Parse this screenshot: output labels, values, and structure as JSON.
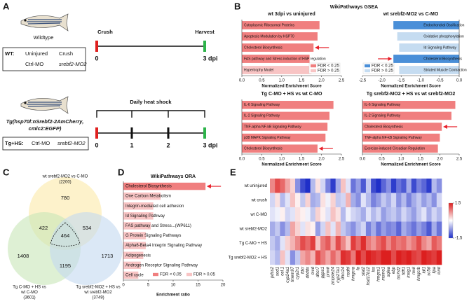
{
  "panel_labels": [
    "A",
    "B",
    "C",
    "D",
    "E"
  ],
  "panel_a": {
    "fish1_label": "Wildtype",
    "timeline1": {
      "start": "Crush",
      "end": "Harvest",
      "ticks": [
        "0",
        "3 dpi"
      ]
    },
    "box1": {
      "head": "WT:",
      "items": [
        "Uninjured",
        "Crush",
        "Ctrl-MO",
        "srebf2-MO2"
      ]
    },
    "fish2_label": [
      "Tg(hsp70l:nSrebf2-2AmCherry,",
      "cmlc2:EGFP)"
    ],
    "timeline2": {
      "title": "Daily heat shock",
      "ticks": [
        "0",
        "1",
        "2",
        "3 dpi"
      ]
    },
    "box2": {
      "head": "Tg+HS:",
      "items": [
        "Ctrl-MO",
        "srebf2-MO2"
      ]
    }
  },
  "gsea_title": "WikiPathways GSEA",
  "chart_data": [
    {
      "type": "barh",
      "title": "wt 3dpi vs uninjured",
      "categories": [
        "Cytoplasmic Ribosomal Proteins",
        "Apoptosis Modulation by HSP70",
        "Cholesterol Biosynthesis",
        "FAS pathway and Stress induction of HSP regulation",
        "Hypertrophy Model"
      ],
      "values": [
        1.95,
        1.9,
        1.8,
        1.7,
        1.75
      ],
      "colors": [
        "#f07f7f",
        "#f07f7f",
        "#f07f7f",
        "#f07f7f",
        "#f8c4c4"
      ],
      "arrow": 2,
      "legend": [
        {
          "name": "FDR < 0.25",
          "color": "#f07f7f"
        },
        {
          "name": "FDR > 0.25",
          "color": "#f8c4c4"
        }
      ],
      "legend_position": "lower right",
      "xlim": [
        0,
        2.5
      ],
      "xticks": [
        {
          "value": 0,
          "label": "0.0"
        },
        0.5,
        {
          "value": 1,
          "label": "1.0"
        },
        1.5,
        {
          "value": 2,
          "label": "2.0"
        },
        2.5
      ],
      "xlabel": "Normalized Enrichment Score"
    },
    {
      "type": "barh",
      "title": "wt srebf2-MO2 vs C-MO",
      "categories": [
        "Endochondral Ossification",
        "Oxidative phosphorylation",
        "Id Signaling Pathway",
        "Cholesterol Biosynthesis",
        "Striated Muscle Contraction"
      ],
      "values": [
        -1.7,
        -1.6,
        -1.55,
        -1.7,
        -1.55
      ],
      "colors": [
        "#4a8fd8",
        "#c5dcf1",
        "#c5dcf1",
        "#4a8fd8",
        "#c5dcf1"
      ],
      "arrow": 3,
      "legend": [
        {
          "name": "FDR < 0.25",
          "color": "#4a8fd8"
        },
        {
          "name": "FDR > 0.25",
          "color": "#c5dcf1"
        }
      ],
      "legend_position": "lower left",
      "xlim": [
        -2.5,
        0
      ],
      "xticks": [
        -2.5,
        {
          "value": -2,
          "label": "-2.0"
        },
        -1.5,
        {
          "value": -1,
          "label": "-1.0"
        },
        -0.5,
        {
          "value": 0,
          "label": "0.0"
        }
      ],
      "xlabel": "Normalized Enrichment Score"
    },
    {
      "type": "barh",
      "title": "Tg C-MO + HS vs wt C-MO",
      "categories": [
        "IL-6 Signaling Pathway",
        "IL-2 Signaling Pathway",
        "TNF-alpha NF-kB Signaling Pathway",
        "p38 MAPK Signaling Pathway",
        "Cholesterol Biosynthesis"
      ],
      "values": [
        2.3,
        2.2,
        2.15,
        2.1,
        1.9
      ],
      "colors": [
        "#f07f7f",
        "#f07f7f",
        "#f07f7f",
        "#f07f7f",
        "#f07f7f"
      ],
      "arrow": 4,
      "xlim": [
        0,
        2.5
      ],
      "xticks": [
        {
          "value": 0,
          "label": "0.0"
        },
        0.5,
        {
          "value": 1,
          "label": "1.0"
        },
        1.5,
        {
          "value": 2,
          "label": "2.0"
        },
        2.5
      ],
      "xlabel": "Normalized Enrichment Score"
    },
    {
      "type": "barh",
      "title": "Tg srebf2-MO2 + HS vs wt srebf2-MO2",
      "categories": [
        "IL-6 Signaling Pathway",
        "IL-2 Signaling Pathway",
        "Cholesterol Biosynthesis",
        "TNF-alpha NF-kB Signaling Pathway",
        "Exercise-induced Circadian Regulation"
      ],
      "values": [
        2.4,
        2.3,
        2.05,
        2.0,
        1.95
      ],
      "colors": [
        "#f07f7f",
        "#f07f7f",
        "#f07f7f",
        "#f07f7f",
        "#f07f7f"
      ],
      "arrow": 2,
      "xlim": [
        0,
        2.5
      ],
      "xticks": [
        {
          "value": 0,
          "label": "0.0"
        },
        0.5,
        {
          "value": 1,
          "label": "1.0"
        },
        1.5,
        {
          "value": 2,
          "label": "2.0"
        },
        2.5
      ],
      "xlabel": "Normalized Enrichment Score"
    },
    {
      "type": "barh",
      "title": "WikiPathways ORA",
      "categories": [
        "Cholesterol Biosynthesis",
        "One Carbon Metabolism",
        "Integrin-mediated cell adhesion",
        "Id Signaling Pathway",
        "FAS pathway and Stress...(WP611)",
        "G Protein Signaling Pathways",
        "Alpha6-Beta4 Integrin Signaling Pathway",
        "Adipogenesis",
        "Androgen Receptor Signaling Pathway",
        "Cell cycle"
      ],
      "values": [
        16.5,
        7.5,
        6,
        6,
        5.5,
        4.5,
        4.5,
        4,
        3.5,
        3
      ],
      "colors": [
        "#f07f7f",
        "#f8c4c4",
        "#f8c4c4",
        "#f8c4c4",
        "#f8c4c4",
        "#f8c4c4",
        "#f8c4c4",
        "#f8c4c4",
        "#f8c4c4",
        "#f8c4c4"
      ],
      "arrow": 0,
      "legend": [
        {
          "name": "FDR < 0.05",
          "color": "#f07f7f"
        },
        {
          "name": "FDR > 0.05",
          "color": "#f8c4c4"
        }
      ],
      "legend_position": "lower right",
      "xlim": [
        0,
        20
      ],
      "xticks": [
        0,
        5,
        10,
        15,
        20
      ],
      "xlabel": "Enrichment ratio"
    },
    {
      "type": "heatmap",
      "rows": [
        "wt uninjured",
        "wt crush",
        "wt C-MO",
        "wt srebf2-MO2",
        "Tg C-MO + HS",
        "Tg srebf2-MO2 + HS"
      ],
      "columns": [
        "pdss2",
        "sod1",
        "cel.1",
        "cyp24a1",
        "tmem97",
        "cyp2r1",
        "fdxr",
        "dhdds",
        "mvd",
        "dhcr7",
        "ggps1",
        "pmvk",
        "zmpste24",
        "cyp27a1",
        "dhcr24",
        "nsdhl",
        "hmgcra",
        "fa",
        "stat2",
        "hsd17b12",
        "lss",
        "hmgcs1",
        "msmo1",
        "sqlea",
        "ebp",
        "tm7sf2",
        "fdft1",
        "insig1",
        "mvk",
        "hmgcrb",
        "idi1",
        "sc5d",
        "lipa",
        "icmt"
      ],
      "values": [
        [
          0.8,
          1.2,
          1.0,
          0.6,
          0.3,
          -0.8,
          -1.3,
          -1.5,
          -0.5,
          0.2,
          -0.3,
          -0.9,
          -1.4,
          -0.6,
          0.4,
          -0.2,
          -1.0,
          -0.7,
          -1.2,
          -0.4,
          -1.3,
          -1.5,
          -1.1,
          -0.8,
          -1.4,
          -1.0,
          -1.2,
          -0.6,
          -1.3,
          -0.9,
          -1.1,
          -1.4,
          -0.5,
          -0.8
        ],
        [
          -0.3,
          0.2,
          -0.5,
          -0.2,
          0.4,
          0.1,
          -0.4,
          0.3,
          -0.6,
          -0.5,
          0.2,
          -0.1,
          0.3,
          -0.4,
          -0.3,
          0.5,
          -0.6,
          -0.8,
          -0.2,
          -0.5,
          -0.9,
          -0.7,
          -0.4,
          -0.6,
          -0.3,
          -0.8,
          -0.5,
          -0.9,
          -0.6,
          -0.4,
          -0.7,
          -0.5,
          -0.8,
          -0.3
        ],
        [
          -0.2,
          -0.1,
          0.1,
          -0.3,
          -0.2,
          0.2,
          0.1,
          -0.1,
          -0.4,
          0.3,
          0.1,
          -0.2,
          0.4,
          0.2,
          -0.5,
          -0.1,
          -0.3,
          -0.4,
          -0.6,
          -0.2,
          -0.5,
          -0.3,
          -0.7,
          -0.5,
          -0.4,
          -0.6,
          -0.3,
          -0.5,
          -0.7,
          -0.4,
          -0.2,
          -0.6,
          -0.3,
          -0.5
        ],
        [
          -0.6,
          -0.4,
          -0.8,
          -0.5,
          0.6,
          0.3,
          -0.2,
          0.2,
          0.1,
          -0.7,
          -0.3,
          0.4,
          -0.2,
          0.5,
          -0.4,
          -0.6,
          -0.8,
          -0.5,
          -0.3,
          -0.9,
          -0.6,
          -1.0,
          -0.7,
          -0.9,
          -0.8,
          -1.1,
          -0.6,
          -0.8,
          -1.0,
          -0.7,
          -0.9,
          -1.2,
          -0.6,
          -1.0
        ],
        [
          -0.4,
          -0.6,
          -0.2,
          0.3,
          0.5,
          0.8,
          1.2,
          1.0,
          1.3,
          0.4,
          0.9,
          1.1,
          0.6,
          1.2,
          0.8,
          0.4,
          1.3,
          1.0,
          1.4,
          0.9,
          0.7,
          1.0,
          1.2,
          0.8,
          1.1,
          0.9,
          1.0,
          0.7,
          0.9,
          1.2,
          0.8,
          0.6,
          1.1,
          0.9
        ],
        [
          -0.3,
          -0.5,
          0.4,
          -0.2,
          -0.8,
          -0.4,
          0.6,
          0.8,
          0.5,
          1.2,
          0.9,
          0.6,
          1.0,
          0.7,
          1.4,
          1.3,
          0.9,
          1.5,
          1.2,
          1.5,
          1.4,
          1.3,
          1.5,
          1.5,
          1.2,
          1.5,
          1.4,
          1.5,
          1.3,
          1.2,
          1.5,
          1.4,
          1.3,
          1.5
        ]
      ],
      "clim": [
        -1.5,
        1.5
      ],
      "cticks": [
        1.5,
        -1.5
      ],
      "colors": [
        "#1f2fc8",
        "#ffffff",
        "#dc1f1f"
      ]
    }
  ],
  "venn": {
    "sets": [
      {
        "name_lines": [
          "wt srebf2-MO2 vs C-MO"
        ],
        "total": 2200,
        "total_label": "(2200)",
        "color": "#fbe9a8"
      },
      {
        "name_lines": [
          "Tg C-MO + HS vs",
          "wt C-MO"
        ],
        "total": 3601,
        "total_label": "(3601)",
        "color": "#c8e6b8"
      },
      {
        "name_lines": [
          "Tg srebf2-MO2 + HS vs",
          "wt srebf2-MO2"
        ],
        "total": 3749,
        "total_label": "(3749)",
        "color": "#c3d8f0"
      }
    ],
    "regions": [
      780,
      422,
      534,
      464,
      1408,
      1195,
      1713
    ]
  }
}
